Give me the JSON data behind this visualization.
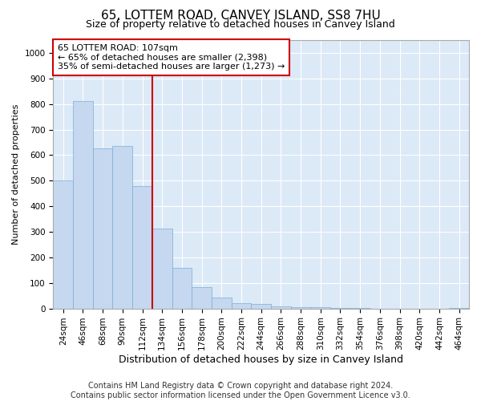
{
  "title": "65, LOTTEM ROAD, CANVEY ISLAND, SS8 7HU",
  "subtitle": "Size of property relative to detached houses in Canvey Island",
  "xlabel": "Distribution of detached houses by size in Canvey Island",
  "ylabel": "Number of detached properties",
  "categories": [
    "24sqm",
    "46sqm",
    "68sqm",
    "90sqm",
    "112sqm",
    "134sqm",
    "156sqm",
    "178sqm",
    "200sqm",
    "222sqm",
    "244sqm",
    "266sqm",
    "288sqm",
    "310sqm",
    "332sqm",
    "354sqm",
    "376sqm",
    "398sqm",
    "420sqm",
    "442sqm",
    "464sqm"
  ],
  "values": [
    500,
    810,
    625,
    635,
    480,
    312,
    158,
    82,
    42,
    20,
    18,
    8,
    5,
    4,
    2,
    1,
    0,
    0,
    0,
    0,
    2
  ],
  "bar_color": "#c5d8f0",
  "bar_edge_color": "#7aadd4",
  "vline_x_idx": 4,
  "vline_color": "#cc0000",
  "annotation_text": "65 LOTTEM ROAD: 107sqm\n← 65% of detached houses are smaller (2,398)\n35% of semi-detached houses are larger (1,273) →",
  "annotation_box_color": "#ffffff",
  "annotation_box_edge": "#cc0000",
  "ylim": [
    0,
    1050
  ],
  "yticks": [
    0,
    100,
    200,
    300,
    400,
    500,
    600,
    700,
    800,
    900,
    1000
  ],
  "footer": "Contains HM Land Registry data © Crown copyright and database right 2024.\nContains public sector information licensed under the Open Government Licence v3.0.",
  "fig_background_color": "#ffffff",
  "plot_background_color": "#dce9f7",
  "grid_color": "#ffffff",
  "title_fontsize": 11,
  "subtitle_fontsize": 9,
  "xlabel_fontsize": 9,
  "ylabel_fontsize": 8,
  "tick_fontsize": 7.5,
  "annotation_fontsize": 8,
  "footer_fontsize": 7
}
